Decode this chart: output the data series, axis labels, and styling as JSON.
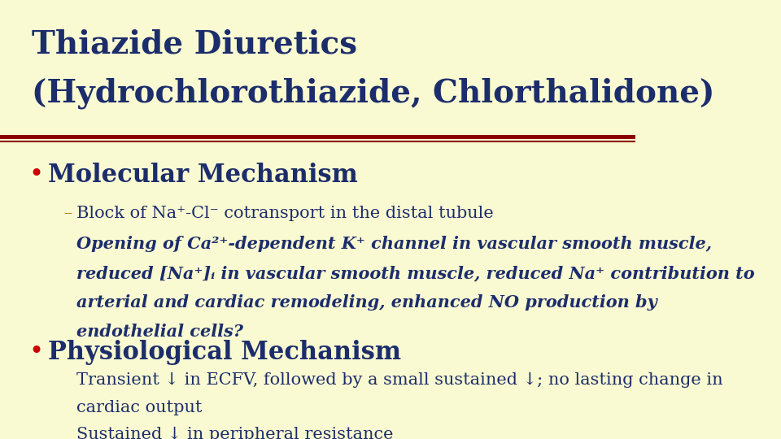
{
  "background_color": "#FAFAD2",
  "title_line1": "Thiazide Diuretics",
  "title_line2": "(Hydrochlorothiazide, Chlorthalidone)",
  "title_color": "#1C2D6B",
  "title_fontsize": 28,
  "separator_color_top": "#8B0000",
  "separator_color_bottom": "#8B0000",
  "bullet_color": "#CC0000",
  "bullet1_text": "Molecular Mechanism",
  "bullet1_color": "#1C2D6B",
  "bullet1_fontsize": 22,
  "sub1_dash_color": "#B8860B",
  "sub1_text": "Block of Na⁺-Cl⁻ cotransport in the distal tubule",
  "sub1_color": "#1C2D6B",
  "sub1_fontsize": 15,
  "sub2_line1": "Opening of Ca²⁺-dependent K⁺ channel in vascular smooth muscle,",
  "sub2_line2": "reduced [Na⁺]ᵢ in vascular smooth muscle, reduced Na⁺ contribution to",
  "sub2_line3": "arterial and cardiac remodeling, enhanced NO production by",
  "sub2_line4": "endothelial cells?",
  "sub2_color": "#1C2D6B",
  "sub2_fontsize": 15,
  "bullet2_text": "Physiological Mechanism",
  "bullet2_color": "#1C2D6B",
  "bullet2_fontsize": 22,
  "phys1_line1": "Transient ↓ in ECFV, followed by a small sustained ↓; no lasting change in",
  "phys1_line2": "cardiac output",
  "phys1_color": "#1C2D6B",
  "phys1_fontsize": 15,
  "phys2_text": "Sustained ↓ in peripheral resistance",
  "phys2_color": "#1C2D6B",
  "phys2_fontsize": 15
}
